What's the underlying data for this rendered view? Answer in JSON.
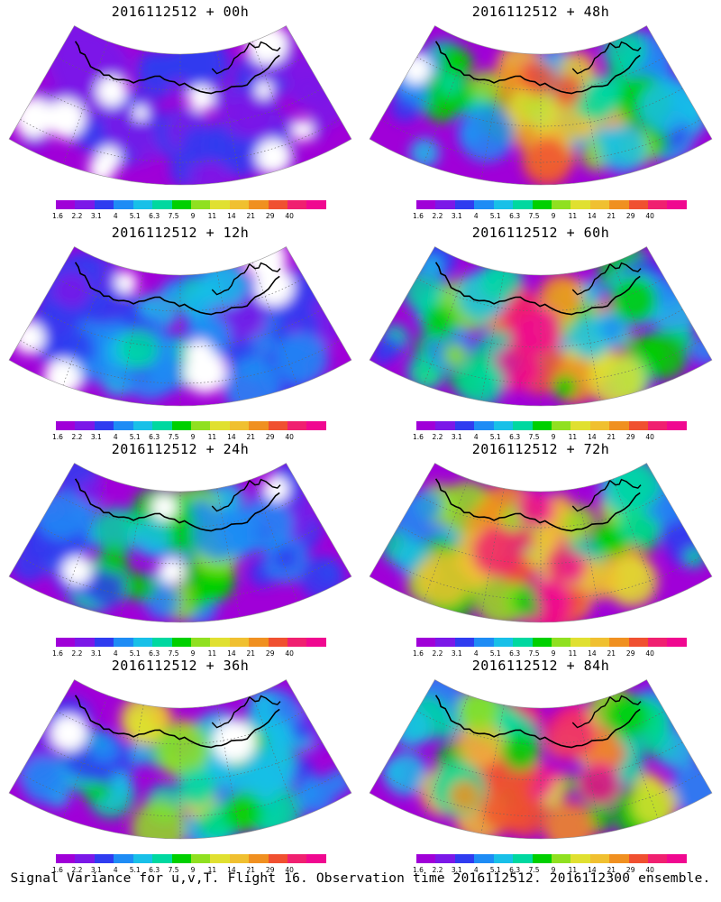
{
  "panels": [
    {
      "title": "2016112512 + 00h",
      "intensity": 0.15,
      "white_frac": 0.28
    },
    {
      "title": "2016112512 + 48h",
      "intensity": 0.62,
      "white_frac": 0.02
    },
    {
      "title": "2016112512 + 12h",
      "intensity": 0.28,
      "white_frac": 0.2
    },
    {
      "title": "2016112512 + 60h",
      "intensity": 0.72,
      "white_frac": 0.0
    },
    {
      "title": "2016112512 + 24h",
      "intensity": 0.4,
      "white_frac": 0.1
    },
    {
      "title": "2016112512 + 72h",
      "intensity": 0.8,
      "white_frac": 0.0
    },
    {
      "title": "2016112512 + 36h",
      "intensity": 0.5,
      "white_frac": 0.05
    },
    {
      "title": "2016112512 + 84h",
      "intensity": 0.85,
      "white_frac": 0.0
    }
  ],
  "colorbar": {
    "labels": [
      "1.6",
      "2.2",
      "3.1",
      "4",
      "5.1",
      "6.3",
      "7.5",
      "9",
      "11",
      "14",
      "21",
      "29",
      "40"
    ],
    "colors": [
      "#a000d8",
      "#7b18e8",
      "#2f3cf0",
      "#1e8cf5",
      "#18c0e8",
      "#00d8a0",
      "#00d000",
      "#90e020",
      "#e0e030",
      "#f0c030",
      "#f09020",
      "#f05030",
      "#f02070",
      "#f00890"
    ]
  },
  "caption": "Signal Variance for u,v,T. Flight 16. Observation time 2016112512. 2016112300 ensemble."
}
